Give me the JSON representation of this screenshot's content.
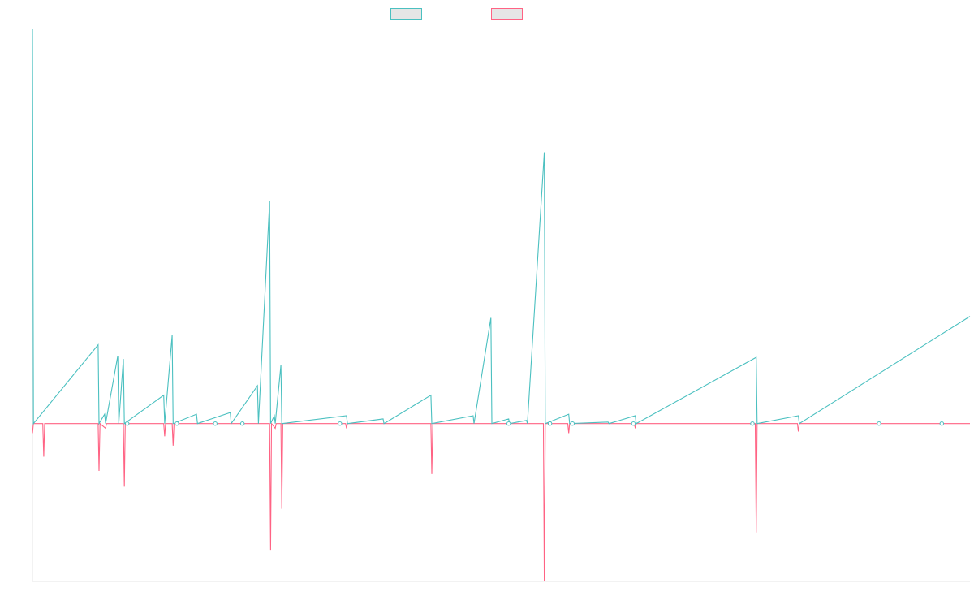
{
  "colors": {
    "series_a": "#4bc0c0",
    "series_b": "#ff6384",
    "axis": "#e5e5e5",
    "legend_fill": "#e6e6e6"
  },
  "chart_data": {
    "type": "line",
    "legend": "top",
    "grid": false,
    "x_range": [
      0,
      1000
    ],
    "y_range": [
      -100,
      250
    ],
    "series": [
      {
        "color": "#4bc0c0",
        "points": [
          [
            0,
            250
          ],
          [
            1,
            0
          ],
          [
            70,
            50
          ],
          [
            71,
            0
          ],
          [
            77,
            6
          ],
          [
            78,
            0
          ],
          [
            91,
            43
          ],
          [
            92,
            0
          ],
          [
            97,
            41
          ],
          [
            98,
            0
          ],
          [
            140,
            18
          ],
          [
            141,
            0
          ],
          [
            149,
            56
          ],
          [
            150,
            0
          ],
          [
            175,
            6
          ],
          [
            176,
            0
          ],
          [
            211,
            7
          ],
          [
            212,
            0
          ],
          [
            240,
            24
          ],
          [
            241,
            0
          ],
          [
            253,
            141
          ],
          [
            254,
            0
          ],
          [
            258,
            5
          ],
          [
            259,
            0
          ],
          [
            265,
            37
          ],
          [
            266,
            0
          ],
          [
            335,
            5
          ],
          [
            336,
            0
          ],
          [
            374,
            3
          ],
          [
            375,
            0
          ],
          [
            425,
            18
          ],
          [
            426,
            0
          ],
          [
            470,
            5
          ],
          [
            471,
            0
          ],
          [
            489,
            67
          ],
          [
            490,
            0
          ],
          [
            508,
            3
          ],
          [
            509,
            0
          ],
          [
            527,
            2
          ],
          [
            528,
            0
          ],
          [
            546,
            172
          ],
          [
            547,
            0
          ],
          [
            572,
            6
          ],
          [
            573,
            0
          ],
          [
            614,
            1
          ],
          [
            615,
            0
          ],
          [
            643,
            5
          ],
          [
            644,
            0
          ],
          [
            772,
            42
          ],
          [
            773,
            0
          ],
          [
            817,
            5
          ],
          [
            818,
            0
          ],
          [
            1000,
            68
          ]
        ]
      },
      {
        "color": "#ff6384",
        "points": [
          [
            0,
            -6
          ],
          [
            1,
            0
          ],
          [
            11,
            0
          ],
          [
            12,
            -21
          ],
          [
            13,
            0
          ],
          [
            70,
            0
          ],
          [
            71,
            -30
          ],
          [
            72,
            0
          ],
          [
            78,
            -3
          ],
          [
            79,
            0
          ],
          [
            97,
            0
          ],
          [
            98,
            -40
          ],
          [
            99,
            0
          ],
          [
            140,
            0
          ],
          [
            141,
            -8
          ],
          [
            142,
            0
          ],
          [
            149,
            0
          ],
          [
            150,
            -14
          ],
          [
            151,
            0
          ],
          [
            253,
            0
          ],
          [
            254,
            -80
          ],
          [
            255,
            0
          ],
          [
            259,
            -3
          ],
          [
            260,
            0
          ],
          [
            265,
            0
          ],
          [
            266,
            -54
          ],
          [
            267,
            0
          ],
          [
            334,
            0
          ],
          [
            335,
            -3
          ],
          [
            336,
            0
          ],
          [
            425,
            0
          ],
          [
            426,
            -32
          ],
          [
            427,
            0
          ],
          [
            545,
            0
          ],
          [
            546,
            -100
          ],
          [
            547,
            0
          ],
          [
            571,
            0
          ],
          [
            572,
            -6
          ],
          [
            573,
            0
          ],
          [
            642,
            0
          ],
          [
            643,
            -3
          ],
          [
            644,
            0
          ],
          [
            771,
            0
          ],
          [
            772,
            -69
          ],
          [
            773,
            0
          ],
          [
            816,
            0
          ],
          [
            817,
            -5
          ],
          [
            818,
            0
          ],
          [
            1000,
            0
          ]
        ]
      }
    ],
    "markers": [
      {
        "x": 101,
        "y": 0
      },
      {
        "x": 154,
        "y": 0
      },
      {
        "x": 195,
        "y": 0
      },
      {
        "x": 224,
        "y": 0
      },
      {
        "x": 328,
        "y": 0
      },
      {
        "x": 508,
        "y": 0
      },
      {
        "x": 552,
        "y": 0
      },
      {
        "x": 576,
        "y": 0
      },
      {
        "x": 641,
        "y": 0
      },
      {
        "x": 768,
        "y": 0
      },
      {
        "x": 903,
        "y": 0
      },
      {
        "x": 970,
        "y": 0
      }
    ]
  }
}
